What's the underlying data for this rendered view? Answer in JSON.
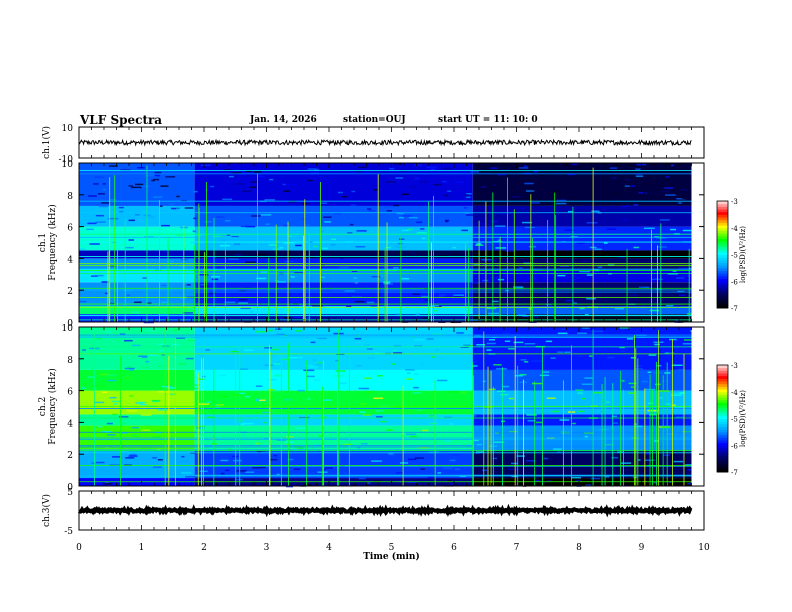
{
  "header": {
    "title": "VLF Spectra",
    "date": "Jan. 14, 2026",
    "station": "station=OUJ",
    "start": "start UT =   11: 10: 0"
  },
  "colors": {
    "cmap": [
      "#000000",
      "#000066",
      "#0000ff",
      "#0099ff",
      "#00ffff",
      "#00ff00",
      "#ffff00",
      "#ff0000",
      "#ffffff"
    ]
  },
  "chart_data": [
    {
      "type": "line",
      "name": "ch1-waveform",
      "ylabel": "ch.1(V)",
      "ylim": [
        -10,
        10
      ],
      "y_ticks": [
        "10",
        "-10"
      ],
      "x": [
        0,
        9.8
      ],
      "signal": {
        "mean": 0,
        "noise_amplitude": 1.5
      }
    },
    {
      "type": "heatmap",
      "name": "ch1-spectrogram",
      "ylabel": "ch.1\nFrequency (kHz)",
      "ylim": [
        0,
        10
      ],
      "xlim": [
        0,
        10
      ],
      "y_ticks": [
        "0",
        "2",
        "4",
        "6",
        "8",
        "10"
      ],
      "data_x_end": 9.8,
      "colorbar": {
        "label": "log(PSD)(V²/Hz)",
        "range": [
          -7,
          -3
        ],
        "ticks": [
          "-3",
          "-4",
          "-5",
          "-6",
          "-7"
        ]
      },
      "bands": [
        {
          "f": [
            0,
            0.5
          ],
          "level": 0.15
        },
        {
          "f": [
            0.5,
            1.0
          ],
          "level": 0.45
        },
        {
          "f": [
            1.0,
            2.5
          ],
          "level": 0.25
        },
        {
          "f": [
            2.5,
            3.3
          ],
          "level": 0.35
        },
        {
          "f": [
            3.3,
            4.0
          ],
          "level": 0.25
        },
        {
          "f": [
            4.0,
            4.5
          ],
          "level": 0.08
        },
        {
          "f": [
            4.5,
            6.0
          ],
          "level": 0.4
        },
        {
          "f": [
            6.0,
            7.3
          ],
          "level": 0.3
        },
        {
          "f": [
            7.3,
            10.0
          ],
          "level": 0.2
        }
      ],
      "segments": [
        {
          "t": [
            0,
            1.85
          ],
          "delta": 0.12
        },
        {
          "t": [
            1.85,
            6.3
          ],
          "delta": 0.02
        },
        {
          "t": [
            6.3,
            9.8
          ],
          "delta": -0.12
        }
      ]
    },
    {
      "type": "heatmap",
      "name": "ch2-spectrogram",
      "ylabel": "ch.2\nFrequency (kHz)",
      "ylim": [
        0,
        10
      ],
      "xlim": [
        0,
        10
      ],
      "y_ticks": [
        "0",
        "2",
        "4",
        "6",
        "8",
        "10"
      ],
      "data_x_end": 9.8,
      "colorbar": {
        "label": "log(PSD)(V²/Hz)",
        "range": [
          -7,
          -3
        ],
        "ticks": [
          "-3",
          "-4",
          "-5",
          "-6",
          "-7"
        ]
      },
      "bands": [
        {
          "f": [
            0,
            0.5
          ],
          "level": 0.15
        },
        {
          "f": [
            0.5,
            2.3
          ],
          "level": 0.3
        },
        {
          "f": [
            2.3,
            3.8
          ],
          "level": 0.55
        },
        {
          "f": [
            3.8,
            4.5
          ],
          "level": 0.45
        },
        {
          "f": [
            4.5,
            6.0
          ],
          "level": 0.6
        },
        {
          "f": [
            6.0,
            7.3
          ],
          "level": 0.5
        },
        {
          "f": [
            7.3,
            10.0
          ],
          "level": 0.45
        }
      ],
      "segments": [
        {
          "t": [
            0,
            1.85
          ],
          "delta": 0.1
        },
        {
          "t": [
            1.85,
            6.3
          ],
          "delta": 0.0
        },
        {
          "t": [
            6.3,
            9.8
          ],
          "delta": -0.18
        }
      ]
    },
    {
      "type": "line",
      "name": "ch3-waveform",
      "ylabel": "ch.3(V)",
      "ylim": [
        -5,
        5
      ],
      "y_ticks": [
        "5",
        "-5"
      ],
      "x": [
        0,
        9.8
      ],
      "signal": {
        "mean": 0,
        "noise_amplitude": 0.3
      },
      "xlabel": "Time (min)",
      "x_ticks": [
        "0",
        "1",
        "2",
        "3",
        "4",
        "5",
        "6",
        "7",
        "8",
        "9",
        "10"
      ]
    }
  ]
}
